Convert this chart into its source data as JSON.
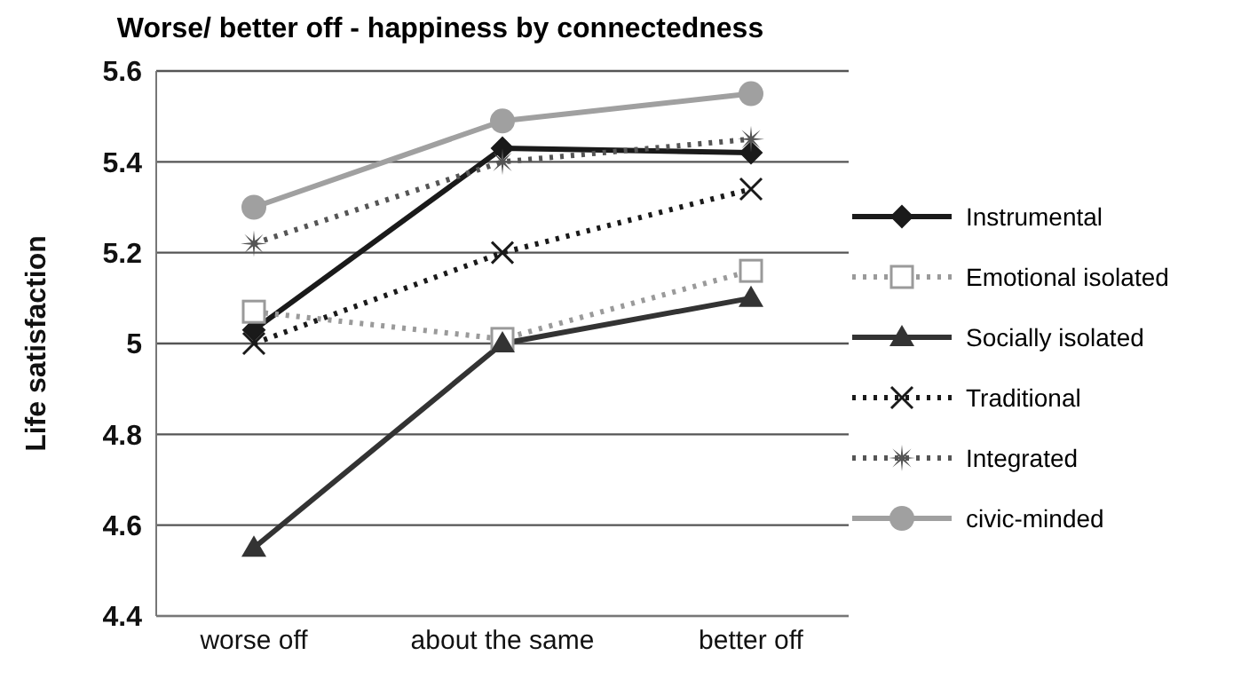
{
  "chart_data": {
    "type": "line",
    "title": "Worse/ better off - happiness by connectedness",
    "ylabel": "Life satisfaction",
    "categories": [
      "worse off",
      "about the same",
      "better off"
    ],
    "series": [
      {
        "name": "Instrumental",
        "color": "#1a1a1a",
        "marker": "diamond",
        "line_style": "solid",
        "values": [
          5.03,
          5.43,
          5.42
        ]
      },
      {
        "name": "Emotional isolated",
        "color": "#9a9a9a",
        "marker": "square",
        "line_style": "dotted",
        "values": [
          5.07,
          5.01,
          5.16
        ]
      },
      {
        "name": "Socially isolated",
        "color": "#333333",
        "marker": "triangle",
        "line_style": "solid",
        "values": [
          4.55,
          5.0,
          5.1
        ]
      },
      {
        "name": "Traditional",
        "color": "#1a1a1a",
        "marker": "cross",
        "line_style": "dotted",
        "values": [
          5.0,
          5.2,
          5.34
        ]
      },
      {
        "name": "Integrated",
        "color": "#555555",
        "marker": "star",
        "line_style": "dotted",
        "values": [
          5.22,
          5.4,
          5.45
        ]
      },
      {
        "name": "civic-minded",
        "color": "#a0a0a0",
        "marker": "circle",
        "line_style": "solid",
        "values": [
          5.3,
          5.49,
          5.55
        ]
      }
    ],
    "ylim": [
      4.4,
      5.6
    ],
    "yticks": [
      4.4,
      4.6,
      4.8,
      {
        "value": 5,
        "label": "5"
      },
      5.2,
      5.4,
      5.6
    ],
    "grid": "y",
    "legend": "right"
  }
}
